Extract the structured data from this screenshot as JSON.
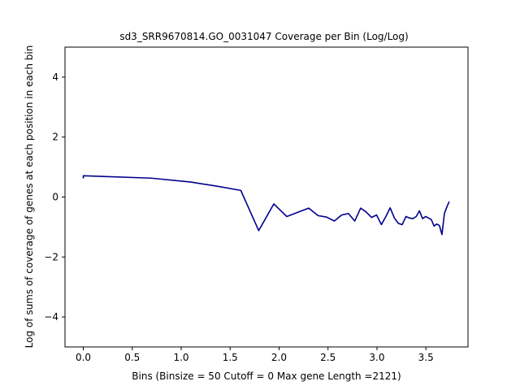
{
  "chart_data": {
    "type": "line",
    "title": "sd3_SRR9670814.GO_0031047 Coverage per Bin (Log/Log)",
    "xlabel": "Bins  (Binsize = 50 Cutoff = 0 Max gene Length =2121)",
    "ylabel": "Log of sums of coverage of genes at each position in each bin",
    "xlim": [
      -0.187,
      3.93
    ],
    "ylim": [
      -5,
      5
    ],
    "x_ticks": [
      0.0,
      0.5,
      1.0,
      1.5,
      2.0,
      2.5,
      3.0,
      3.5
    ],
    "x_tick_labels": [
      "0.0",
      "0.5",
      "1.0",
      "1.5",
      "2.0",
      "2.5",
      "3.0",
      "3.5"
    ],
    "y_ticks": [
      -4,
      -2,
      0,
      2,
      4
    ],
    "y_tick_labels": [
      "−4",
      "−2",
      "0",
      "2",
      "4"
    ],
    "grid": false,
    "color": "#00008b",
    "series": [
      {
        "x": [
          0.0,
          0.0,
          0.693,
          1.099,
          1.386,
          1.609,
          1.792,
          1.946,
          2.079,
          2.197,
          2.303,
          2.398,
          2.485,
          2.565,
          2.639,
          2.708,
          2.773,
          2.833,
          2.89,
          2.944,
          2.996,
          3.045,
          3.091,
          3.135,
          3.178,
          3.219,
          3.258,
          3.296,
          3.332,
          3.367,
          3.401,
          3.434,
          3.466,
          3.497,
          3.526,
          3.555,
          3.584,
          3.611,
          3.638,
          3.664,
          3.689,
          3.714,
          3.738
        ],
        "y": [
          0.62,
          0.71,
          0.63,
          0.5,
          0.35,
          0.22,
          -1.12,
          -0.23,
          -0.65,
          -0.5,
          -0.37,
          -0.62,
          -0.67,
          -0.8,
          -0.6,
          -0.55,
          -0.8,
          -0.37,
          -0.5,
          -0.68,
          -0.6,
          -0.92,
          -0.65,
          -0.36,
          -0.7,
          -0.88,
          -0.92,
          -0.65,
          -0.7,
          -0.72,
          -0.65,
          -0.46,
          -0.72,
          -0.65,
          -0.7,
          -0.75,
          -0.97,
          -0.9,
          -0.95,
          -1.25,
          -0.55,
          -0.33,
          -0.15
        ]
      }
    ]
  }
}
